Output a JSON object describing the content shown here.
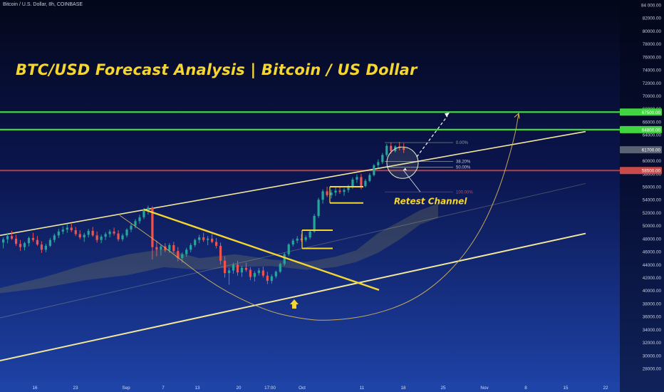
{
  "header": {
    "symbol_line": "Bitcoin / U.S. Dollar, 8h, COINBASE"
  },
  "title": "BTC/USD Forecast Analysis | Bitcoin / US Dollar",
  "annotations": {
    "retest_channel": "Retest Channel"
  },
  "colors": {
    "background_top": "#05081c",
    "background_bottom": "#1d3fa2",
    "channel": "#f3e79b",
    "trendline": "#f5d531",
    "resistance": "#41d63f",
    "support": "#c94a4a",
    "candle_up": "#26a69a",
    "candle_down": "#ef5350",
    "arc": "#d8b85a",
    "cloud": "#8a8a5a"
  },
  "chart_data": {
    "type": "candlestick",
    "symbol": "Bitcoin / U.S. Dollar",
    "interval": "8h",
    "exchange": "COINBASE",
    "y_axis": {
      "currency": "USD",
      "range": [
        27000,
        84000
      ],
      "ticks": [
        "84 000.00",
        "82000.00",
        "80000.00",
        "78000.00",
        "76000.00",
        "74000.00",
        "72000.00",
        "70000.00",
        "68000.00",
        "66000.00",
        "64000.00",
        "62000.00",
        "60000.00",
        "58000.00",
        "56000.00",
        "54000.00",
        "52000.00",
        "50000.00",
        "48000.00",
        "46000.00",
        "44000.00",
        "42000.00",
        "40000.00",
        "38000.00",
        "36000.00",
        "34000.00",
        "32000.00",
        "30000.00",
        "28000.00"
      ]
    },
    "x_axis": {
      "ticks": [
        "16",
        "23",
        "Sep",
        "7",
        "13",
        "20",
        "17:00",
        "Oct",
        "11",
        "18",
        "25",
        "Nov",
        "8",
        "15",
        "22"
      ]
    },
    "price_labels": [
      {
        "value": 67500,
        "text": "67500.00",
        "color": "#41d63f"
      },
      {
        "value": 64800,
        "text": "64800.00",
        "color": "#41d63f"
      },
      {
        "value": 61700,
        "text": "61700.00",
        "color": "#5b6273"
      },
      {
        "value": 58500,
        "text": "58500.00",
        "color": "#c94a4a"
      }
    ],
    "horizontal_levels": [
      {
        "name": "resistance-upper",
        "value": 67500
      },
      {
        "name": "resistance-lower",
        "value": 64800
      },
      {
        "name": "support",
        "value": 58500
      }
    ],
    "fibonacci": [
      {
        "label": "0.00%",
        "value": 62800
      },
      {
        "label": "38.20%",
        "value": 59900
      },
      {
        "label": "50.00%",
        "value": 59000
      },
      {
        "label": "100.00%",
        "value": 55200
      }
    ],
    "candles": [
      [
        47400,
        48200,
        46500,
        47900
      ],
      [
        47900,
        48900,
        47300,
        48400
      ],
      [
        48400,
        49200,
        47800,
        48000
      ],
      [
        48000,
        48600,
        46900,
        47200
      ],
      [
        47200,
        47800,
        46100,
        46700
      ],
      [
        46700,
        47500,
        46200,
        47300
      ],
      [
        47300,
        48300,
        46800,
        48100
      ],
      [
        48100,
        48900,
        47500,
        47800
      ],
      [
        47800,
        48400,
        46900,
        47100
      ],
      [
        47100,
        47600,
        45800,
        46300
      ],
      [
        46300,
        47200,
        45900,
        46900
      ],
      [
        46900,
        48100,
        46700,
        47800
      ],
      [
        47800,
        48800,
        47400,
        48500
      ],
      [
        48500,
        49500,
        48100,
        49100
      ],
      [
        49100,
        49900,
        48700,
        49400
      ],
      [
        49400,
        50200,
        48900,
        49700
      ],
      [
        49700,
        50300,
        49000,
        49300
      ],
      [
        49300,
        49800,
        48400,
        48700
      ],
      [
        48700,
        49300,
        47900,
        48200
      ],
      [
        48200,
        48900,
        47500,
        48600
      ],
      [
        48600,
        49500,
        48200,
        49200
      ],
      [
        49200,
        49800,
        48300,
        48500
      ],
      [
        48500,
        49100,
        47400,
        47800
      ],
      [
        47800,
        48600,
        47300,
        48300
      ],
      [
        48300,
        49000,
        47800,
        48700
      ],
      [
        48700,
        49400,
        48200,
        49100
      ],
      [
        49100,
        49700,
        48500,
        48800
      ],
      [
        48800,
        49300,
        47600,
        47900
      ],
      [
        47900,
        48800,
        47600,
        48500
      ],
      [
        48500,
        49600,
        48200,
        49400
      ],
      [
        49400,
        50300,
        49000,
        50000
      ],
      [
        50000,
        51000,
        49600,
        50700
      ],
      [
        50700,
        51700,
        50300,
        51300
      ],
      [
        51300,
        52700,
        51000,
        52400
      ],
      [
        52400,
        53100,
        51700,
        52800
      ],
      [
        52800,
        53000,
        44800,
        46700
      ],
      [
        46700,
        47700,
        45300,
        46300
      ],
      [
        46300,
        47100,
        45400,
        46800
      ],
      [
        46800,
        47300,
        45900,
        46200
      ],
      [
        46200,
        47300,
        45800,
        47000
      ],
      [
        47000,
        47500,
        45800,
        46100
      ],
      [
        46100,
        46700,
        44500,
        45000
      ],
      [
        45000,
        45900,
        44300,
        45600
      ],
      [
        45600,
        46600,
        45200,
        46300
      ],
      [
        46300,
        47300,
        45900,
        47000
      ],
      [
        47000,
        48000,
        46700,
        47800
      ],
      [
        47800,
        48600,
        47300,
        48200
      ],
      [
        48200,
        48900,
        47500,
        47800
      ],
      [
        47800,
        48400,
        47000,
        48000
      ],
      [
        48000,
        48700,
        47300,
        47500
      ],
      [
        47500,
        48100,
        46500,
        46900
      ],
      [
        46900,
        47400,
        44000,
        44600
      ],
      [
        44600,
        45300,
        42000,
        42700
      ],
      [
        42700,
        43500,
        40900,
        43100
      ],
      [
        43100,
        44300,
        42600,
        44000
      ],
      [
        44000,
        44600,
        42300,
        42800
      ],
      [
        42800,
        43800,
        42100,
        43500
      ],
      [
        43500,
        44300,
        42900,
        43200
      ],
      [
        43200,
        43600,
        41600,
        42100
      ],
      [
        42100,
        43000,
        41400,
        42700
      ],
      [
        42700,
        43500,
        42300,
        43100
      ],
      [
        43100,
        43700,
        42000,
        42300
      ],
      [
        42300,
        42900,
        41000,
        41500
      ],
      [
        41500,
        42500,
        41100,
        42200
      ],
      [
        42200,
        43100,
        41900,
        42900
      ],
      [
        42900,
        44300,
        42700,
        44100
      ],
      [
        44100,
        45900,
        43800,
        45600
      ],
      [
        45600,
        47300,
        45300,
        47100
      ],
      [
        47100,
        48000,
        46800,
        47700
      ],
      [
        47700,
        48400,
        47300,
        48000
      ],
      [
        48000,
        48700,
        47500,
        47800
      ],
      [
        47800,
        48500,
        47500,
        48200
      ],
      [
        48200,
        49400,
        47900,
        49100
      ],
      [
        49100,
        51800,
        48900,
        51500
      ],
      [
        51500,
        54300,
        51200,
        54000
      ],
      [
        54000,
        55600,
        53400,
        55300
      ],
      [
        55300,
        56000,
        54400,
        54700
      ],
      [
        54700,
        55500,
        54200,
        55100
      ],
      [
        55100,
        55900,
        54600,
        55400
      ],
      [
        55400,
        56000,
        54900,
        55200
      ],
      [
        55200,
        55800,
        54600,
        55500
      ],
      [
        55500,
        56300,
        55100,
        56000
      ],
      [
        56000,
        57400,
        55700,
        57100
      ],
      [
        57100,
        57900,
        56600,
        57500
      ],
      [
        57500,
        58000,
        55600,
        56100
      ],
      [
        56100,
        57200,
        55900,
        56900
      ],
      [
        56900,
        58100,
        56700,
        57800
      ],
      [
        57800,
        59500,
        57600,
        59300
      ],
      [
        59300,
        60200,
        58900,
        59800
      ],
      [
        59800,
        61200,
        59500,
        60900
      ],
      [
        60900,
        62600,
        60600,
        62300
      ],
      [
        62300,
        62800,
        61100,
        61500
      ],
      [
        61500,
        62400,
        61300,
        62200
      ],
      [
        62200,
        62900,
        61600,
        62000
      ],
      [
        62000,
        62700,
        61200,
        61700
      ]
    ]
  }
}
